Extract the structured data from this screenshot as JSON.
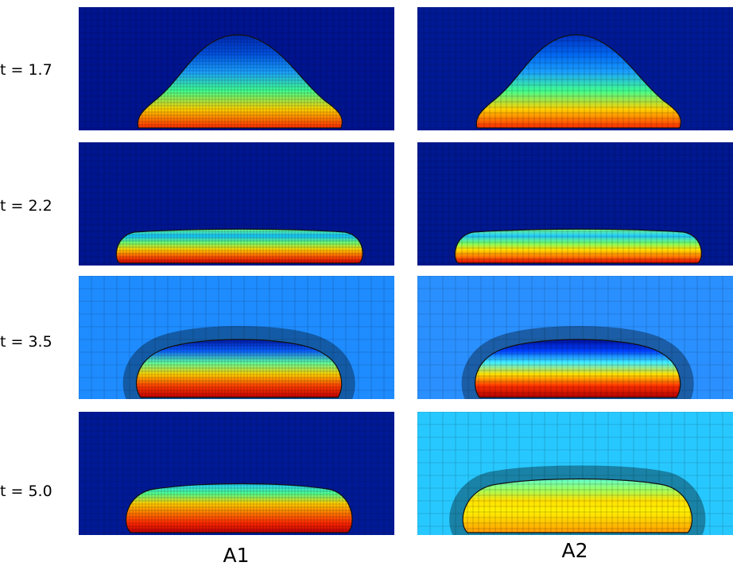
{
  "row_labels": [
    "t = 1.7",
    "t = 2.2",
    "t = 3.5",
    "t = 5.0"
  ],
  "column_labels": [
    "A1",
    "A2"
  ]
}
